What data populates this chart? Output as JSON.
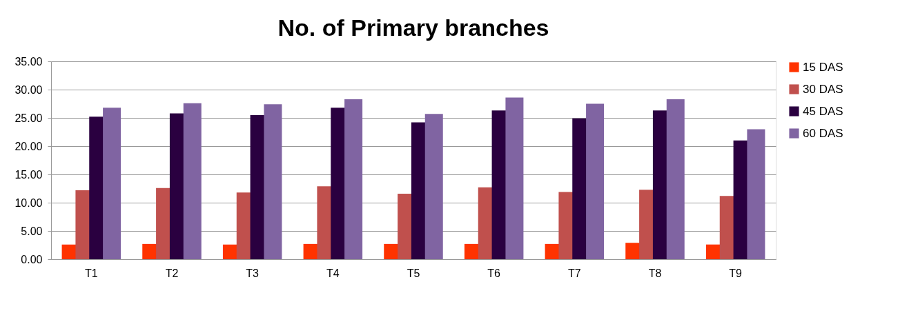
{
  "chart_data": {
    "type": "bar",
    "title": "No. of Primary branches",
    "categories": [
      "T1",
      "T2",
      "T3",
      "T4",
      "T5",
      "T6",
      "T7",
      "T8",
      "T9"
    ],
    "series": [
      {
        "name": "15 DAS",
        "color": "#ff3300",
        "values": [
          2.6,
          2.7,
          2.6,
          2.7,
          2.7,
          2.7,
          2.7,
          2.9,
          2.6
        ]
      },
      {
        "name": "30 DAS",
        "color": "#c0504d",
        "values": [
          12.2,
          12.6,
          11.8,
          12.9,
          11.6,
          12.7,
          11.9,
          12.3,
          11.2
        ]
      },
      {
        "name": "45 DAS",
        "color": "#2a0040",
        "values": [
          25.2,
          25.8,
          25.5,
          26.8,
          24.2,
          26.3,
          24.9,
          26.3,
          21.0
        ]
      },
      {
        "name": "60 DAS",
        "color": "#8064a2",
        "values": [
          26.8,
          27.6,
          27.4,
          28.3,
          25.7,
          28.6,
          27.5,
          28.3,
          23.0
        ]
      }
    ],
    "ylim": [
      0,
      35
    ],
    "yticks": [
      {
        "value": 0,
        "label": "0.00"
      },
      {
        "value": 5,
        "label": "5.00"
      },
      {
        "value": 10,
        "label": "10.00"
      },
      {
        "value": 15,
        "label": "15.00"
      },
      {
        "value": 20,
        "label": "20.00"
      },
      {
        "value": 25,
        "label": "25.00"
      },
      {
        "value": 30,
        "label": "30.00"
      },
      {
        "value": 35,
        "label": "35.00"
      }
    ],
    "grid": "y",
    "legend": "right"
  }
}
